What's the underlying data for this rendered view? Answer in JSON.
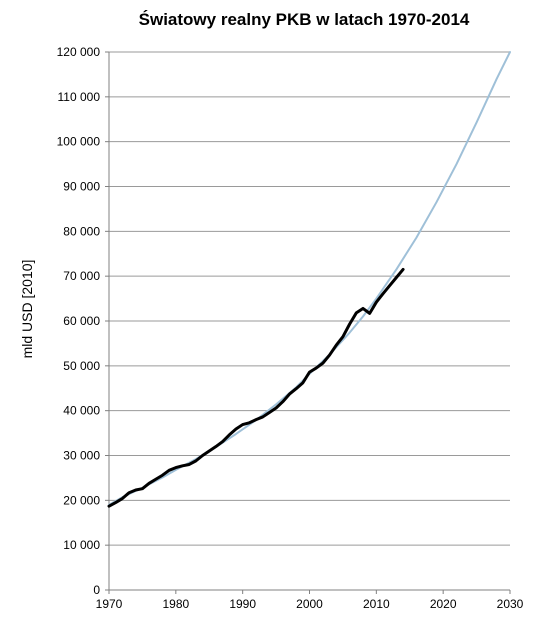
{
  "chart_data": {
    "type": "line",
    "title": "Światowy realny PKB w latach 1970-2014",
    "xlabel": "",
    "ylabel": "mld USD [2010]",
    "xlim": [
      1970,
      2030
    ],
    "ylim": [
      0,
      120000
    ],
    "x_ticks": [
      1970,
      1980,
      1990,
      2000,
      2010,
      2020,
      2030
    ],
    "x_tick_labels": [
      "1970",
      "1980",
      "1990",
      "2000",
      "2010",
      "2020",
      "2030"
    ],
    "y_ticks": [
      0,
      10000,
      20000,
      30000,
      40000,
      50000,
      60000,
      70000,
      80000,
      90000,
      100000,
      110000,
      120000
    ],
    "y_tick_labels": [
      "0",
      "10 000",
      "20 000",
      "30 000",
      "40 000",
      "50 000",
      "60 000",
      "70 000",
      "80 000",
      "90 000",
      "100 000",
      "110 000",
      "120 000"
    ],
    "grid": true,
    "legend": "none",
    "series": [
      {
        "color": "#9fc0d8",
        "x": [
          1970,
          1972,
          1975,
          1978,
          1980,
          1983,
          1986,
          1989,
          1992,
          1995,
          1998,
          2000,
          2003,
          2006,
          2008,
          2010,
          2013,
          2016,
          2019,
          2022,
          2025,
          2028,
          2030
        ],
        "y": [
          19000,
          20700,
          22800,
          25100,
          26800,
          29200,
          31900,
          34800,
          37900,
          41400,
          45200,
          48200,
          52500,
          57400,
          61000,
          65000,
          71500,
          78600,
          86500,
          95000,
          104300,
          114000,
          120000
        ]
      },
      {
        "color": "#000000",
        "x": [
          1970,
          1971,
          1972,
          1973,
          1974,
          1975,
          1976,
          1977,
          1978,
          1979,
          1980,
          1981,
          1982,
          1983,
          1984,
          1985,
          1986,
          1987,
          1988,
          1989,
          1990,
          1991,
          1992,
          1993,
          1994,
          1995,
          1996,
          1997,
          1998,
          1999,
          2000,
          2001,
          2002,
          2003,
          2004,
          2005,
          2006,
          2007,
          2008,
          2009,
          2010,
          2011,
          2012,
          2013,
          2014
        ],
        "y": [
          18700,
          19500,
          20400,
          21700,
          22300,
          22600,
          23800,
          24700,
          25600,
          26700,
          27300,
          27700,
          28000,
          28800,
          30000,
          31000,
          32000,
          33100,
          34600,
          35900,
          36900,
          37300,
          38000,
          38600,
          39600,
          40600,
          42000,
          43700,
          44900,
          46200,
          48600,
          49500,
          50600,
          52400,
          54600,
          56500,
          59300,
          61800,
          62800,
          61700,
          64200,
          66100,
          67900,
          69700,
          71500
        ]
      }
    ]
  }
}
